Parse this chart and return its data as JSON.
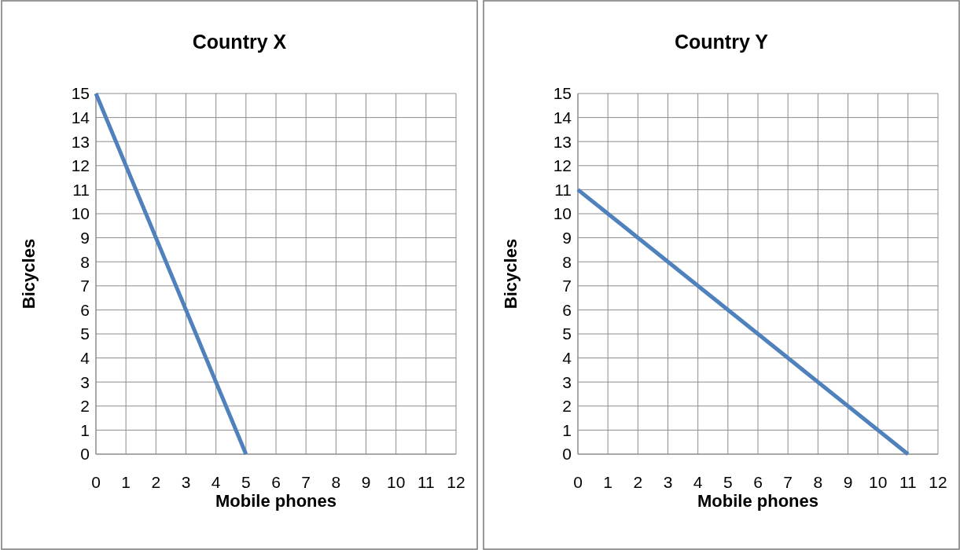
{
  "chart_data": [
    {
      "type": "line",
      "title": "Country X",
      "xlabel": "Mobile phones",
      "ylabel": "Bicycles",
      "x": [
        0,
        5
      ],
      "series": [
        {
          "color": "#4f81bd",
          "values": [
            15,
            0
          ]
        }
      ],
      "xlim": [
        0,
        12
      ],
      "ylim": [
        0,
        15
      ],
      "xticks": [
        0,
        1,
        2,
        3,
        4,
        5,
        6,
        7,
        8,
        9,
        10,
        11,
        12
      ],
      "yticks": [
        0,
        1,
        2,
        3,
        4,
        5,
        6,
        7,
        8,
        9,
        10,
        11,
        12,
        13,
        14,
        15
      ],
      "grid": true
    },
    {
      "type": "line",
      "title": "Country Y",
      "xlabel": "Mobile phones",
      "ylabel": "Bicycles",
      "x": [
        0,
        11
      ],
      "series": [
        {
          "color": "#4f81bd",
          "values": [
            11,
            0
          ]
        }
      ],
      "xlim": [
        0,
        12
      ],
      "ylim": [
        0,
        15
      ],
      "xticks": [
        0,
        1,
        2,
        3,
        4,
        5,
        6,
        7,
        8,
        9,
        10,
        11,
        12
      ],
      "yticks": [
        0,
        1,
        2,
        3,
        4,
        5,
        6,
        7,
        8,
        9,
        10,
        11,
        12,
        13,
        14,
        15
      ],
      "grid": true
    }
  ]
}
